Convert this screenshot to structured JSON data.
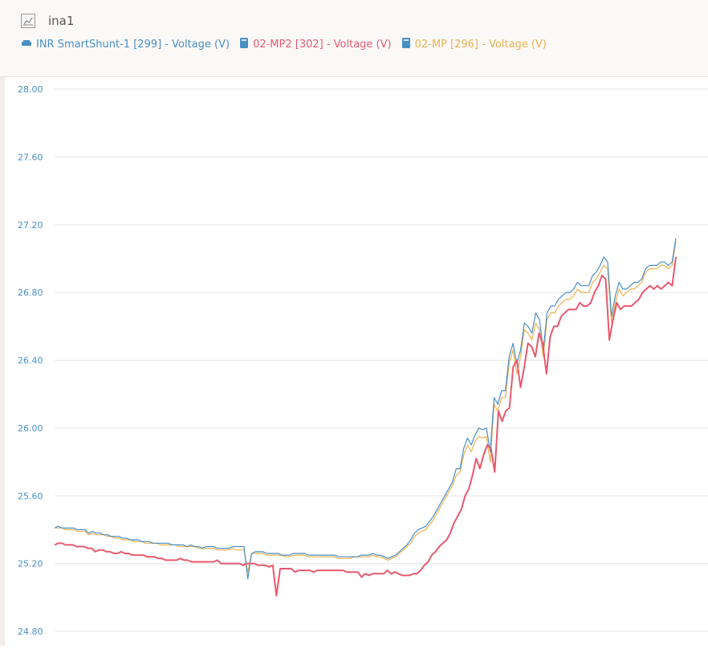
{
  "header": {
    "title": "ina1",
    "title_icon": "chart-icon",
    "legend": [
      {
        "label": "INR SmartShunt-1 [299] - Voltage (V)",
        "color": "#4a8fc4",
        "icon": "battery-monitor-icon"
      },
      {
        "label": "02-MP2 [302] - Voltage (V)",
        "color": "#e8596f",
        "icon": "inverter-icon"
      },
      {
        "label": "02-MP [296] - Voltage (V)",
        "color": "#eab24e",
        "icon": "inverter-icon"
      }
    ]
  },
  "chart_data": {
    "type": "line",
    "title": "ina1",
    "xlabel": "",
    "ylabel": "",
    "ylim": [
      24.8,
      28.0
    ],
    "yticks": [
      "28.00",
      "27.60",
      "27.20",
      "26.80",
      "26.40",
      "26.00",
      "25.60",
      "25.20",
      "24.80"
    ],
    "grid": true,
    "tick_color": "#4a8fc4",
    "series": [
      {
        "name": "INR SmartShunt-1 [299] - Voltage (V)",
        "color": "#4a8fc4",
        "values": [
          25.41,
          25.42,
          25.41,
          25.41,
          25.41,
          25.41,
          25.4,
          25.4,
          25.4,
          25.38,
          25.39,
          25.38,
          25.38,
          25.37,
          25.37,
          25.36,
          25.36,
          25.36,
          25.35,
          25.35,
          25.34,
          25.34,
          25.34,
          25.33,
          25.33,
          25.33,
          25.32,
          25.32,
          25.32,
          25.32,
          25.32,
          25.31,
          25.31,
          25.31,
          25.31,
          25.3,
          25.31,
          25.3,
          25.3,
          25.29,
          25.3,
          25.3,
          25.3,
          25.29,
          25.29,
          25.29,
          25.29,
          25.3,
          25.3,
          25.3,
          25.3,
          25.11,
          25.26,
          25.27,
          25.27,
          25.27,
          25.26,
          25.26,
          25.26,
          25.26,
          25.25,
          25.25,
          25.25,
          25.26,
          25.26,
          25.26,
          25.26,
          25.25,
          25.25,
          25.25,
          25.25,
          25.25,
          25.25,
          25.25,
          25.25,
          25.24,
          25.24,
          25.24,
          25.24,
          25.24,
          25.24,
          25.25,
          25.25,
          25.25,
          25.26,
          25.25,
          25.25,
          25.24,
          25.23,
          25.24,
          25.25,
          25.27,
          25.29,
          25.31,
          25.34,
          25.38,
          25.4,
          25.41,
          25.42,
          25.45,
          25.48,
          25.52,
          25.56,
          25.6,
          25.64,
          25.68,
          25.76,
          25.76,
          25.88,
          25.94,
          25.9,
          25.96,
          26.0,
          25.99,
          26.0,
          25.86,
          26.18,
          26.14,
          26.22,
          26.22,
          26.42,
          26.5,
          26.38,
          26.46,
          26.62,
          26.6,
          26.56,
          26.68,
          26.64,
          26.46,
          26.68,
          26.72,
          26.72,
          26.76,
          26.78,
          26.8,
          26.8,
          26.82,
          26.86,
          26.84,
          26.84,
          26.84,
          26.9,
          26.92,
          26.96,
          27.01,
          26.98,
          26.66,
          26.78,
          26.86,
          26.82,
          26.82,
          26.84,
          26.86,
          26.86,
          26.88,
          26.94,
          26.96,
          26.96,
          26.96,
          26.98,
          26.98,
          26.96,
          26.98,
          27.12
        ]
      },
      {
        "name": "02-MP2 [302] - Voltage (V)",
        "color": "#e8596f",
        "values": [
          25.31,
          25.32,
          25.32,
          25.31,
          25.31,
          25.31,
          25.3,
          25.3,
          25.3,
          25.29,
          25.29,
          25.27,
          25.28,
          25.28,
          25.27,
          25.27,
          25.26,
          25.26,
          25.27,
          25.26,
          25.26,
          25.25,
          25.25,
          25.25,
          25.25,
          25.24,
          25.24,
          25.24,
          25.23,
          25.23,
          25.22,
          25.22,
          25.22,
          25.22,
          25.23,
          25.22,
          25.22,
          25.21,
          25.21,
          25.21,
          25.21,
          25.21,
          25.21,
          25.21,
          25.22,
          25.2,
          25.2,
          25.2,
          25.2,
          25.2,
          25.2,
          25.19,
          25.2,
          25.2,
          25.2,
          25.19,
          25.19,
          25.19,
          25.18,
          25.19,
          25.01,
          25.17,
          25.17,
          25.17,
          25.17,
          25.15,
          25.16,
          25.16,
          25.16,
          25.16,
          25.15,
          25.16,
          25.16,
          25.16,
          25.16,
          25.16,
          25.16,
          25.16,
          25.16,
          25.15,
          25.15,
          25.15,
          25.15,
          25.12,
          25.14,
          25.13,
          25.14,
          25.14,
          25.14,
          25.14,
          25.16,
          25.14,
          25.15,
          25.14,
          25.13,
          25.13,
          25.13,
          25.14,
          25.14,
          25.16,
          25.19,
          25.21,
          25.25,
          25.27,
          25.3,
          25.32,
          25.34,
          25.38,
          25.44,
          25.48,
          25.52,
          25.6,
          25.64,
          25.72,
          25.82,
          25.76,
          25.84,
          25.9,
          25.88,
          25.74,
          26.1,
          26.04,
          26.1,
          26.12,
          26.36,
          26.4,
          26.24,
          26.36,
          26.5,
          26.48,
          26.42,
          26.56,
          26.5,
          26.32,
          26.54,
          26.6,
          26.6,
          26.66,
          26.68,
          26.7,
          26.7,
          26.7,
          26.74,
          26.72,
          26.72,
          26.74,
          26.8,
          26.84,
          26.9,
          26.88,
          26.52,
          26.64,
          26.74,
          26.7,
          26.72,
          26.72,
          26.72,
          26.74,
          26.76,
          26.8,
          26.82,
          26.84,
          26.82,
          26.84,
          26.82,
          26.84,
          26.86,
          26.84,
          27.01
        ]
      },
      {
        "name": "02-MP [296] - Voltage (V)",
        "color": "#eab24e",
        "values": [
          25.41,
          25.41,
          25.41,
          25.4,
          25.4,
          25.4,
          25.39,
          25.39,
          25.39,
          25.37,
          25.38,
          25.37,
          25.37,
          25.37,
          25.36,
          25.36,
          25.35,
          25.35,
          25.34,
          25.34,
          25.34,
          25.33,
          25.33,
          25.33,
          25.32,
          25.32,
          25.32,
          25.32,
          25.31,
          25.31,
          25.31,
          25.31,
          25.31,
          25.3,
          25.3,
          25.3,
          25.3,
          25.3,
          25.29,
          25.29,
          25.29,
          25.29,
          25.29,
          25.28,
          25.28,
          25.28,
          25.28,
          25.29,
          25.28,
          25.28,
          25.28,
          25.15,
          25.26,
          25.26,
          25.26,
          25.26,
          25.25,
          25.25,
          25.25,
          25.25,
          25.25,
          25.24,
          25.24,
          25.25,
          25.25,
          25.25,
          25.25,
          25.24,
          25.24,
          25.24,
          25.24,
          25.24,
          25.24,
          25.24,
          25.24,
          25.23,
          25.23,
          25.23,
          25.23,
          25.24,
          25.24,
          25.24,
          25.24,
          25.24,
          25.25,
          25.24,
          25.24,
          25.23,
          25.22,
          25.23,
          25.24,
          25.26,
          25.28,
          25.3,
          25.32,
          25.36,
          25.38,
          25.39,
          25.4,
          25.43,
          25.46,
          25.5,
          25.54,
          25.58,
          25.62,
          25.66,
          25.72,
          25.74,
          25.84,
          25.9,
          25.86,
          25.92,
          25.95,
          25.94,
          25.95,
          25.8,
          26.14,
          26.1,
          26.18,
          26.18,
          26.38,
          26.46,
          26.32,
          26.42,
          26.58,
          26.56,
          26.52,
          26.62,
          26.58,
          26.42,
          26.64,
          26.68,
          26.68,
          26.72,
          26.74,
          26.76,
          26.76,
          26.78,
          26.82,
          26.8,
          26.8,
          26.8,
          26.86,
          26.88,
          26.92,
          26.96,
          26.94,
          26.62,
          26.74,
          26.82,
          26.78,
          26.8,
          26.82,
          26.82,
          26.84,
          26.86,
          26.92,
          26.94,
          26.94,
          26.94,
          26.96,
          26.96,
          26.94,
          26.96,
          27.1
        ]
      }
    ]
  }
}
